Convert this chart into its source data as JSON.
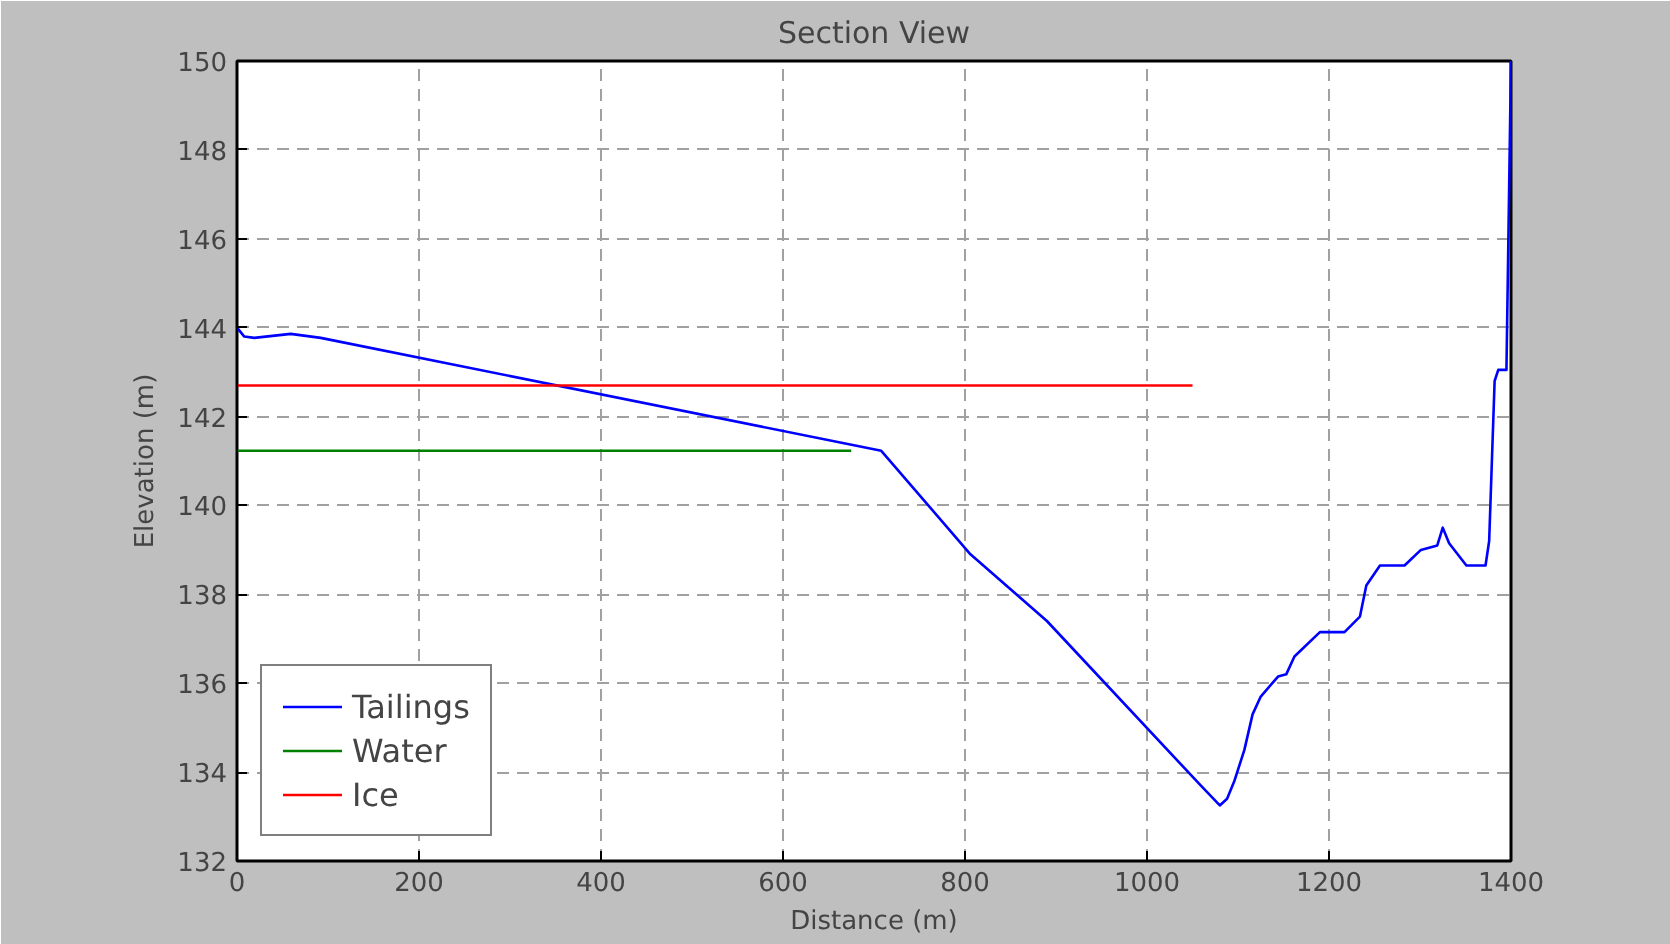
{
  "chart_data": {
    "type": "line",
    "title": "Section View",
    "xlabel": "Distance (m)",
    "ylabel": "Elevation (m)",
    "xlim": [
      0,
      1400
    ],
    "ylim": [
      132,
      150
    ],
    "xticks": [
      0,
      200,
      400,
      600,
      800,
      1000,
      1200,
      1400
    ],
    "yticks": [
      132,
      134,
      136,
      138,
      140,
      142,
      144,
      146,
      148,
      150
    ],
    "grid": true,
    "legend": "bottom left",
    "line_style": "solid",
    "marker": "none",
    "series": [
      {
        "name": "Tailings",
        "color": "#0000ff",
        "x": [
          0,
          8,
          19,
          59,
          92,
          708,
          806,
          890,
          1059,
          1080,
          1088,
          1096,
          1107,
          1116,
          1125,
          1144,
          1153,
          1162,
          1190,
          1217,
          1234,
          1241,
          1256,
          1283,
          1301,
          1319,
          1325,
          1332,
          1351,
          1372,
          1376,
          1382,
          1386,
          1395,
          1400
        ],
        "values": [
          144.0,
          143.8,
          143.77,
          143.86,
          143.77,
          141.23,
          138.9,
          137.4,
          133.7,
          133.25,
          133.4,
          133.8,
          134.5,
          135.3,
          135.7,
          136.15,
          136.2,
          136.6,
          137.15,
          137.15,
          137.5,
          138.2,
          138.65,
          138.65,
          139.0,
          139.1,
          139.5,
          139.15,
          138.65,
          138.65,
          139.2,
          142.8,
          143.05,
          143.05,
          150
        ]
      },
      {
        "name": "Water",
        "color": "#008000",
        "x": [
          0,
          675
        ],
        "values": [
          141.23,
          141.23
        ]
      },
      {
        "name": "Ice",
        "color": "#ff0000",
        "x": [
          0,
          1050
        ],
        "values": [
          142.7,
          142.7
        ]
      }
    ]
  }
}
